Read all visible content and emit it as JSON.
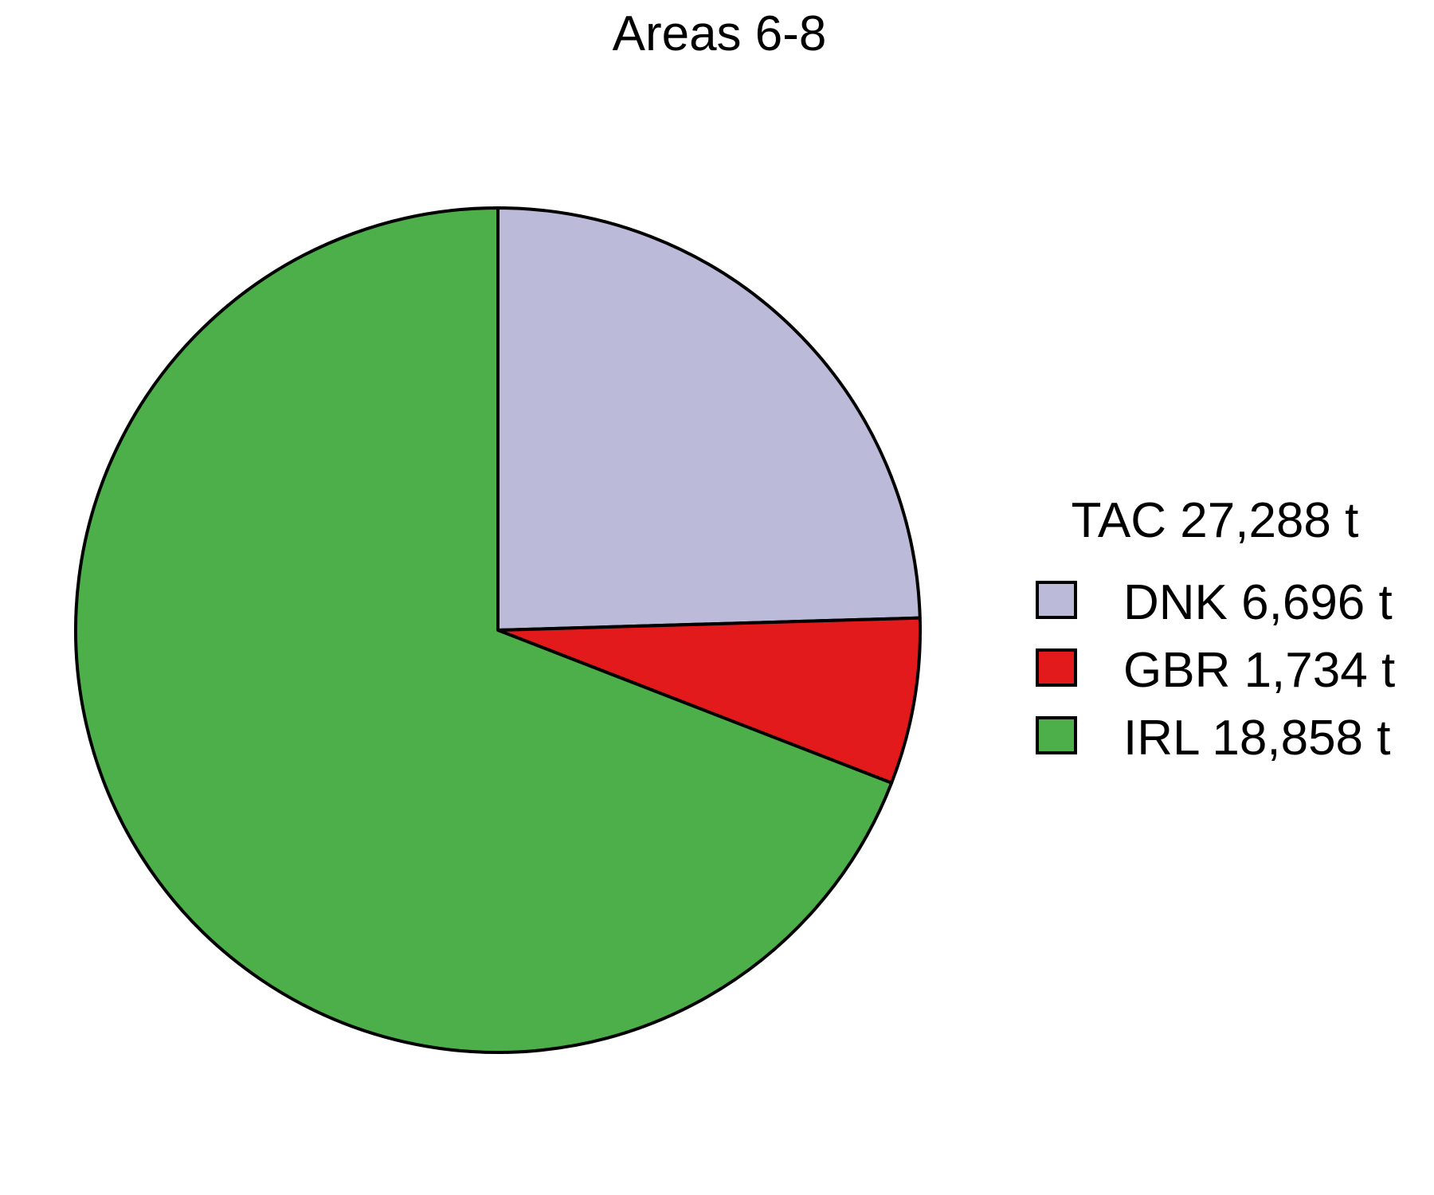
{
  "chart_data": {
    "type": "pie",
    "title": "Areas 6-8",
    "legend_title": "TAC 27,288 t",
    "legend_position": "right",
    "direction": "clockwise",
    "start": "12 o'clock",
    "slices": [
      {
        "label": "DNK 6,696 t",
        "value": 6696,
        "color": "#bcbad9"
      },
      {
        "label": "GBR 1,734 t",
        "value": 1734,
        "color": "#e31a1c"
      },
      {
        "label": "IRL 18,858 t",
        "value": 18858,
        "color": "#4daf4a"
      }
    ]
  }
}
